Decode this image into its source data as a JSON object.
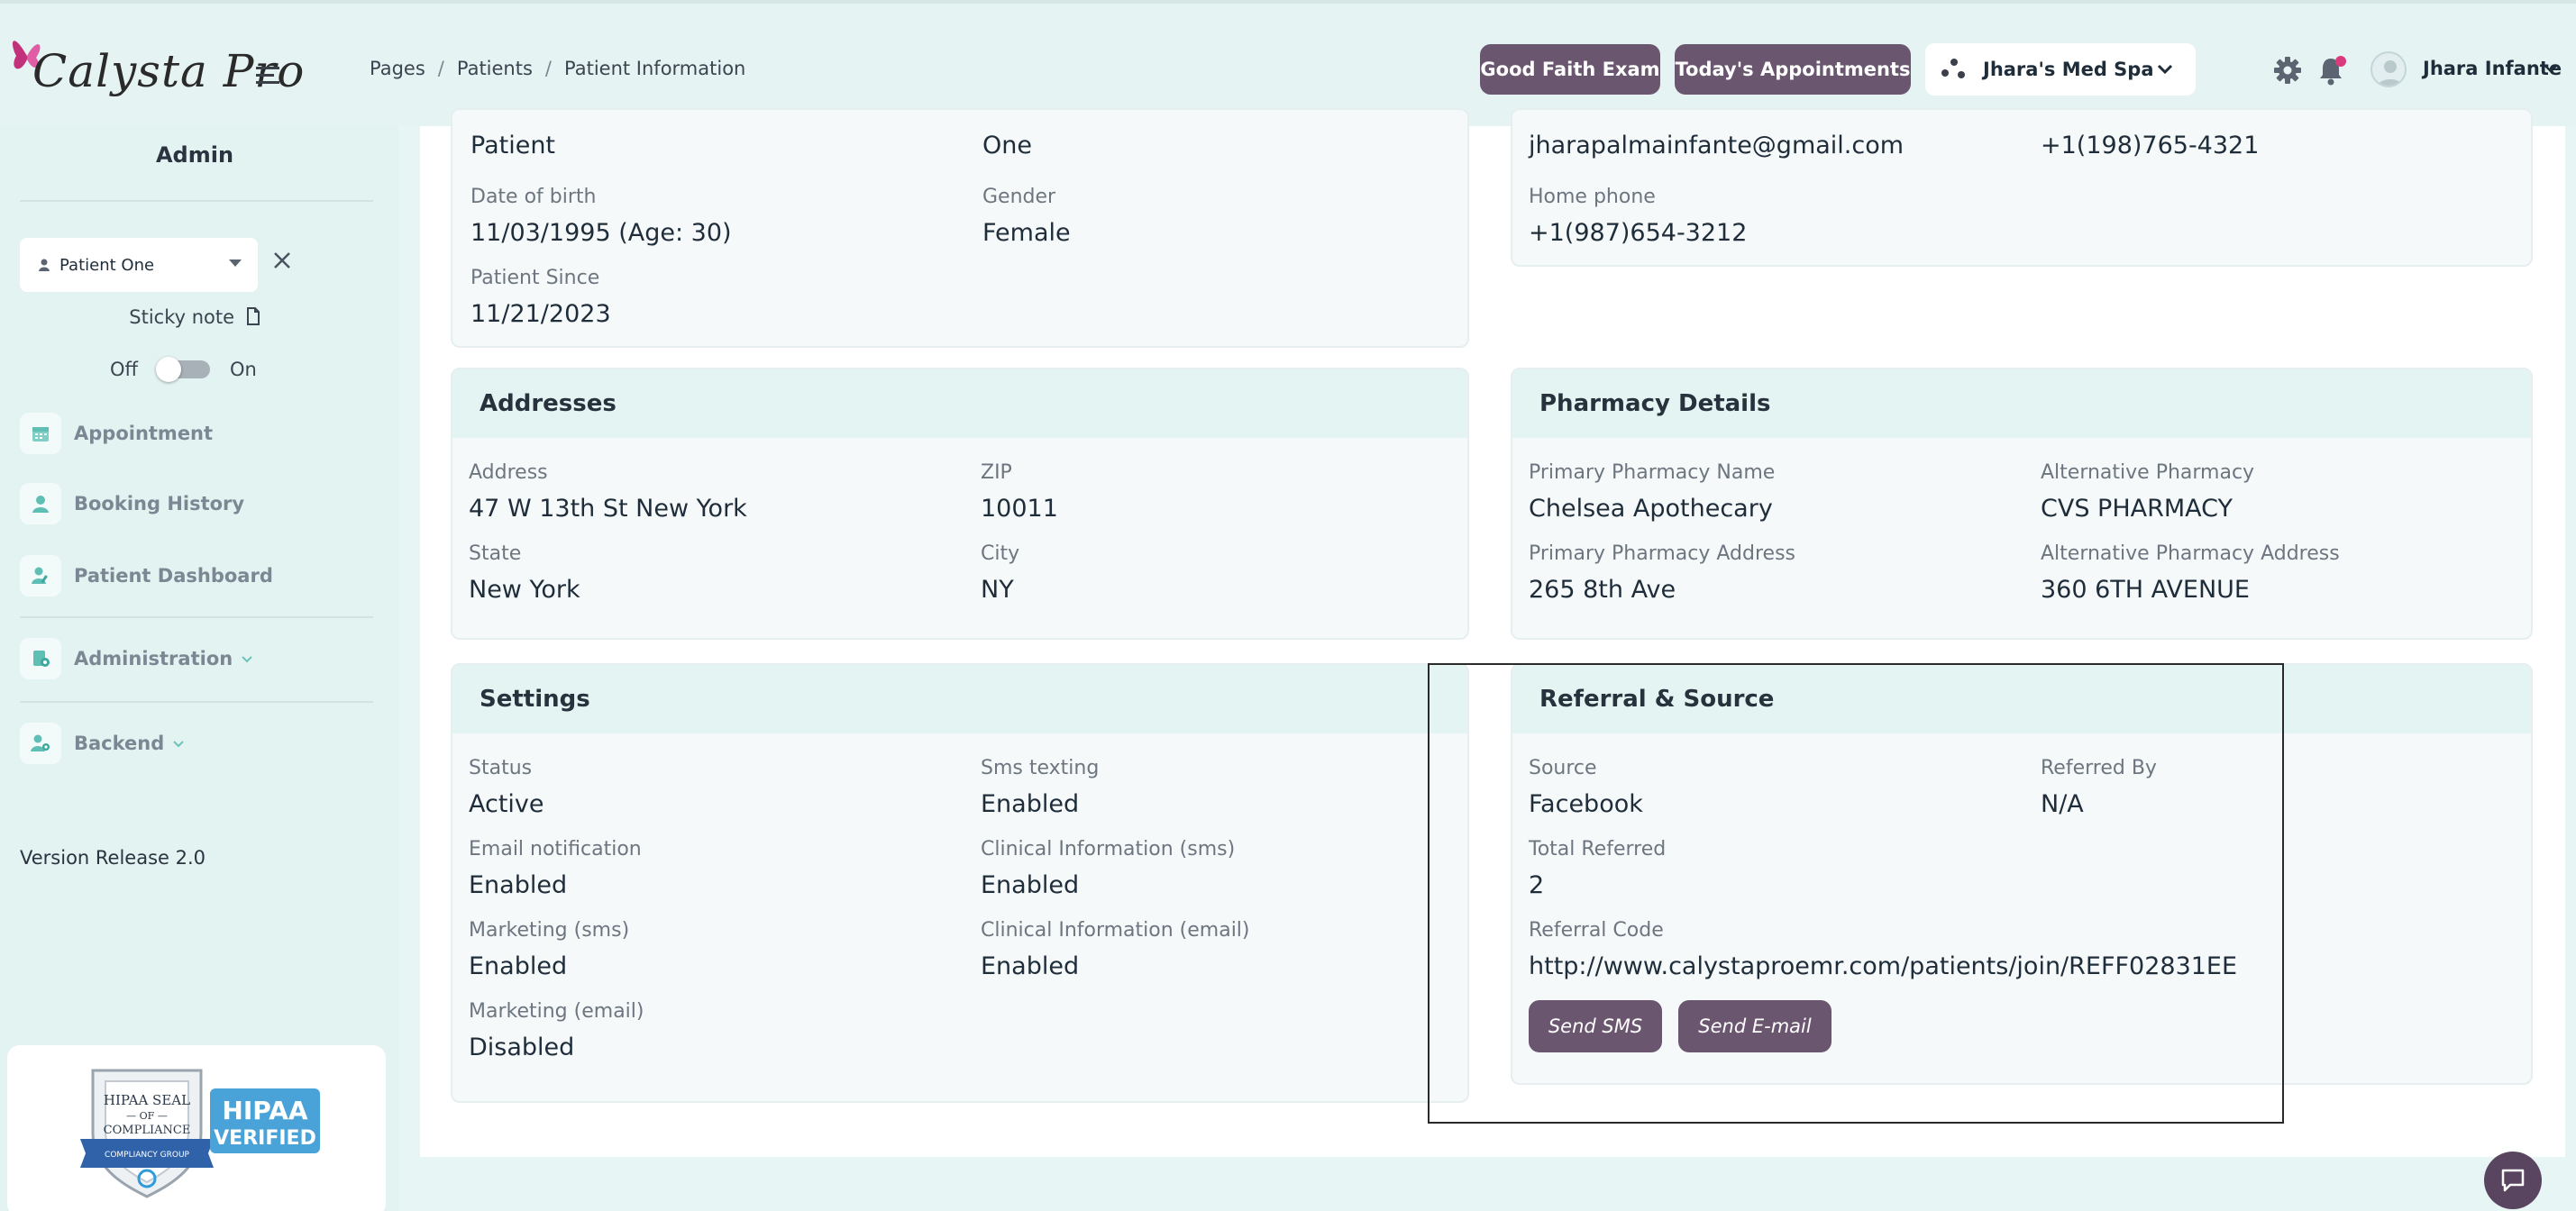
{
  "header": {
    "logo_text": "Calysta Pro",
    "breadcrumb": [
      "Pages",
      "Patients",
      "Patient Information"
    ],
    "breadcrumb_sep": "/",
    "good_faith_label": "Good Faith Exam",
    "appointments_label": "Today's Appointments",
    "location_selected": "Jhara's Med Spa",
    "user_name": "Jhara Infante",
    "icons": [
      "menu-icon",
      "settings-icon",
      "bell-icon",
      "avatar-icon",
      "chevron-down-icon"
    ],
    "accent_color": "#6b5670"
  },
  "sidebar": {
    "title": "Admin",
    "patient_selected": "Patient One",
    "sticky_note_label": "Sticky note",
    "toggle_off": "Off",
    "toggle_on": "On",
    "items": [
      {
        "label": "Appointment",
        "icon": "calendar-icon"
      },
      {
        "label": "Booking History",
        "icon": "person-icon"
      },
      {
        "label": "Patient Dashboard",
        "icon": "user-edit-icon"
      },
      {
        "label": "Administration",
        "icon": "admin-icon"
      },
      {
        "label": "Backend",
        "icon": "users-cog-icon"
      }
    ],
    "version": "Version Release 2.0",
    "hipaa_seal": "HIPAA SEAL OF COMPLIANCE",
    "hipaa_verified": "HIPAA VERIFIED",
    "hipaa_group": "COMPLIANCY GROUP"
  },
  "personal": {
    "last_name_value": "Patient",
    "first_name_value": "One",
    "dob_label": "Date of birth",
    "dob_value": "11/03/1995 (Age: 30)",
    "gender_label": "Gender",
    "gender_value": "Female",
    "since_label": "Patient Since",
    "since_value": "11/21/2023"
  },
  "contact": {
    "email_value": "jharapalmainfante@gmail.com",
    "mobile_value": "+1(198)765-4321",
    "home_label": "Home phone",
    "home_value": "+1(987)654-3212"
  },
  "addresses": {
    "title": "Addresses",
    "address_label": "Address",
    "address_value": "47 W 13th St New York",
    "zip_label": "ZIP",
    "zip_value": "10011",
    "state_label": "State",
    "state_value": "New York",
    "city_label": "City",
    "city_value": "NY"
  },
  "pharmacy": {
    "title": "Pharmacy Details",
    "primary_name_label": "Primary Pharmacy Name",
    "primary_name_value": "Chelsea Apothecary",
    "alt_label": "Alternative Pharmacy",
    "alt_value": "CVS PHARMACY",
    "primary_addr_label": "Primary Pharmacy Address",
    "primary_addr_value": "265 8th Ave",
    "alt_addr_label": "Alternative Pharmacy Address",
    "alt_addr_value": "360 6TH AVENUE"
  },
  "settings": {
    "title": "Settings",
    "status_label": "Status",
    "status_value": "Active",
    "sms_label": "Sms texting",
    "sms_value": "Enabled",
    "email_notif_label": "Email notification",
    "email_notif_value": "Enabled",
    "clinical_sms_label": "Clinical Information (sms)",
    "clinical_sms_value": "Enabled",
    "marketing_sms_label": "Marketing (sms)",
    "marketing_sms_value": "Enabled",
    "clinical_email_label": "Clinical Information (email)",
    "clinical_email_value": "Enabled",
    "marketing_email_label": "Marketing (email)",
    "marketing_email_value": "Disabled"
  },
  "referral": {
    "title": "Referral & Source",
    "source_label": "Source",
    "source_value": "Facebook",
    "referred_by_label": "Referred By",
    "referred_by_value": "N/A",
    "total_label": "Total Referred",
    "total_value": "2",
    "code_label": "Referral Code",
    "code_value": "http://www.calystaproemr.com/patients/join/REFF02831EE",
    "send_sms_label": "Send SMS",
    "send_email_label": "Send E-mail"
  }
}
